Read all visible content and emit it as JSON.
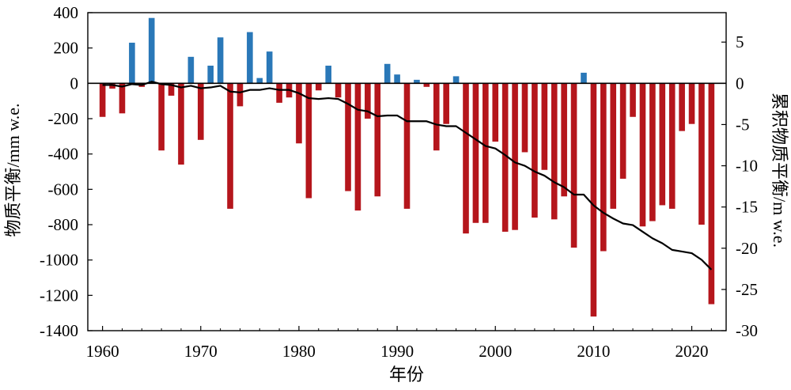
{
  "chart_data": {
    "type": "bar",
    "title": "",
    "xlabel": "年份",
    "ylabel": "物质平衡/mm w.e.",
    "ylabel_right": "累积物质平衡/m w.e.",
    "xlim": [
      1958.5,
      2023.5
    ],
    "ylim": [
      -1400,
      400
    ],
    "ylim_right": [
      -30,
      8.57
    ],
    "x_ticks": [
      1960,
      1970,
      1980,
      1990,
      2000,
      2010,
      2020
    ],
    "y_ticks": [
      400,
      200,
      0,
      -200,
      -400,
      -600,
      -800,
      -1000,
      -1200,
      -1400
    ],
    "y_ticks_right": [
      5,
      0,
      -5,
      -10,
      -15,
      -20,
      -25,
      -30
    ],
    "colors": {
      "positive": "#2a78b8",
      "negative": "#b5161c",
      "line": "#000000",
      "axis": "#000000"
    },
    "grid": false,
    "series": [
      {
        "name": "物质平衡",
        "axis": "left",
        "kind": "bar",
        "x": [
          1960,
          1961,
          1962,
          1963,
          1964,
          1965,
          1966,
          1967,
          1968,
          1969,
          1970,
          1971,
          1972,
          1973,
          1974,
          1975,
          1976,
          1977,
          1978,
          1979,
          1980,
          1981,
          1982,
          1983,
          1984,
          1985,
          1986,
          1987,
          1988,
          1989,
          1990,
          1991,
          1992,
          1993,
          1994,
          1995,
          1996,
          1997,
          1998,
          1999,
          2000,
          2001,
          2002,
          2003,
          2004,
          2005,
          2006,
          2007,
          2008,
          2009,
          2010,
          2011,
          2012,
          2013,
          2014,
          2015,
          2016,
          2017,
          2018,
          2019,
          2020,
          2021,
          2022
        ],
        "values": [
          -190,
          -30,
          -170,
          230,
          -20,
          370,
          -380,
          -70,
          -460,
          150,
          -320,
          100,
          260,
          -710,
          -130,
          290,
          30,
          180,
          -110,
          -80,
          -340,
          -650,
          -40,
          100,
          -80,
          -610,
          -720,
          -200,
          -640,
          110,
          50,
          -710,
          20,
          -20,
          -380,
          -230,
          40,
          -850,
          -790,
          -790,
          -330,
          -840,
          -830,
          -390,
          -760,
          -490,
          -770,
          -640,
          -930,
          60,
          -1320,
          -950,
          -710,
          -540,
          -190,
          -810,
          -780,
          -690,
          -710,
          -270,
          -230,
          -800,
          -1250
        ]
      },
      {
        "name": "累积物质平衡",
        "axis": "right",
        "kind": "line",
        "x": [
          1960,
          1961,
          1962,
          1963,
          1964,
          1965,
          1966,
          1967,
          1968,
          1969,
          1970,
          1971,
          1972,
          1973,
          1974,
          1975,
          1976,
          1977,
          1978,
          1979,
          1980,
          1981,
          1982,
          1983,
          1984,
          1985,
          1986,
          1987,
          1988,
          1989,
          1990,
          1991,
          1992,
          1993,
          1994,
          1995,
          1996,
          1997,
          1998,
          1999,
          2000,
          2001,
          2002,
          2003,
          2004,
          2005,
          2006,
          2007,
          2008,
          2009,
          2010,
          2011,
          2012,
          2013,
          2014,
          2015,
          2016,
          2017,
          2018,
          2019,
          2020,
          2021,
          2022
        ],
        "values": [
          -0.2,
          -0.2,
          -0.4,
          -0.1,
          -0.2,
          0.2,
          -0.1,
          -0.2,
          -0.5,
          -0.3,
          -0.6,
          -0.5,
          -0.3,
          -1.0,
          -1.1,
          -0.8,
          -0.8,
          -0.6,
          -0.8,
          -0.8,
          -1.2,
          -1.8,
          -1.9,
          -1.8,
          -1.9,
          -2.5,
          -3.2,
          -3.4,
          -4.0,
          -3.9,
          -3.9,
          -4.6,
          -4.6,
          -4.6,
          -5.0,
          -5.2,
          -5.2,
          -6.0,
          -6.8,
          -7.6,
          -7.9,
          -8.7,
          -9.6,
          -10.0,
          -10.7,
          -11.2,
          -12.0,
          -12.6,
          -13.5,
          -13.5,
          -14.8,
          -15.7,
          -16.4,
          -17.0,
          -17.2,
          -18.0,
          -18.8,
          -19.4,
          -20.2,
          -20.4,
          -20.6,
          -21.4,
          -22.6
        ]
      }
    ]
  }
}
